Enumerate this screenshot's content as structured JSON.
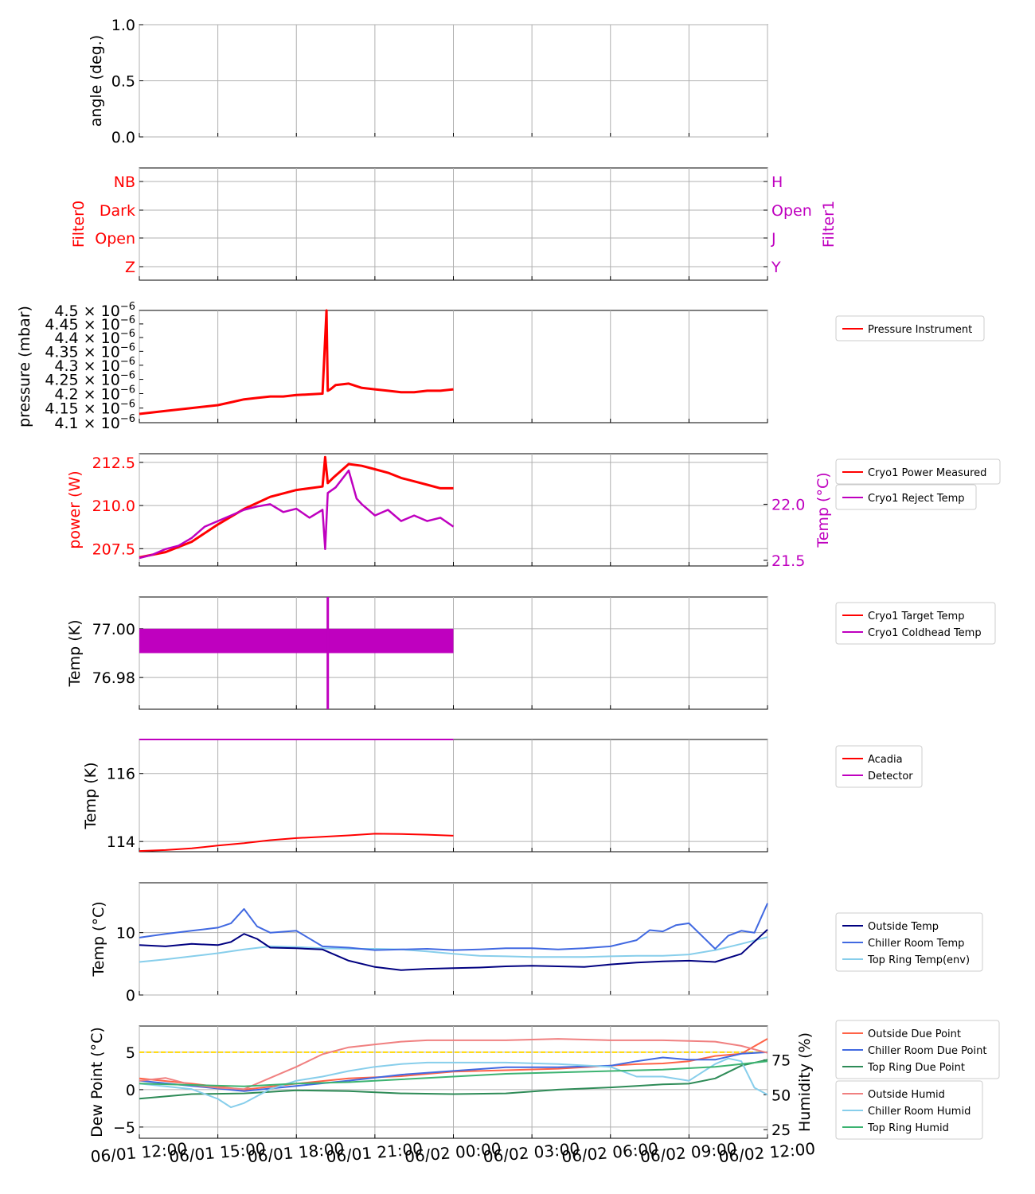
{
  "time_ticks": [
    "06/01 12:00",
    "06/01 15:00",
    "06/01 18:00",
    "06/01 21:00",
    "06/02 00:00",
    "06/02 03:00",
    "06/02 06:00",
    "06/02 09:00",
    "06/02 12:00"
  ],
  "colors": {
    "red": "#ff0000",
    "magenta": "#bf00bf",
    "navy": "#000080",
    "royalblue": "#4169e1",
    "skyblue": "#87ceeb",
    "seagreen": "#2e8b57",
    "tomato": "#ff6347",
    "lightcoral": "#f08080",
    "mediumseagreen": "#3cb371",
    "gold": "#ffd700",
    "grid": "#b0b0b0"
  },
  "chart_data": [
    {
      "type": "line",
      "ylabel": "angle (deg.)",
      "ylim": [
        0,
        1
      ],
      "yticks": [
        "0.0",
        "0.5",
        "1.0"
      ],
      "series": []
    },
    {
      "type": "line",
      "ylabel_left": "Filter0",
      "ylabel_right": "Filter1",
      "yticks_left": [
        "Z",
        "Open",
        "Dark",
        "NB"
      ],
      "yticks_right": [
        "Y",
        "J",
        "Open",
        "H"
      ],
      "series": []
    },
    {
      "type": "line",
      "ylabel": "pressure (mbar)",
      "yscale": "log",
      "ylim": [
        4.1e-06,
        4.5e-06
      ],
      "yticks": [
        {
          "mant": "4.1",
          "exp": "−6"
        },
        {
          "mant": "4.15",
          "exp": "−6"
        },
        {
          "mant": "4.2",
          "exp": "−6"
        },
        {
          "mant": "4.25",
          "exp": "−6"
        },
        {
          "mant": "4.3",
          "exp": "−6"
        },
        {
          "mant": "4.35",
          "exp": "−6"
        },
        {
          "mant": "4.4",
          "exp": "−6"
        },
        {
          "mant": "4.45",
          "exp": "−6"
        },
        {
          "mant": "4.5",
          "exp": "−6"
        }
      ],
      "series": [
        {
          "name": "Pressure Instrument",
          "x": [
            0,
            1,
            2,
            3,
            3.5,
            4,
            4.5,
            5,
            5.5,
            6,
            7,
            7.15,
            7.2,
            7.3,
            7.5,
            8,
            8.5,
            9,
            9.5,
            10,
            10.5,
            11,
            11.5,
            12
          ],
          "y": [
            4.13e-06,
            4.14e-06,
            4.15e-06,
            4.16e-06,
            4.17e-06,
            4.18e-06,
            4.185e-06,
            4.19e-06,
            4.19e-06,
            4.195e-06,
            4.2e-06,
            4.5e-06,
            4.21e-06,
            4.215e-06,
            4.23e-06,
            4.235e-06,
            4.22e-06,
            4.215e-06,
            4.21e-06,
            4.205e-06,
            4.205e-06,
            4.21e-06,
            4.21e-06,
            4.215e-06
          ]
        }
      ]
    },
    {
      "type": "line",
      "ylabel_left": "power (W)",
      "ylabel_right": "Temp (°C)",
      "ylim_left": [
        206.5,
        213.0
      ],
      "ylim_right": [
        21.45,
        22.45
      ],
      "yticks_left": [
        "207.5",
        "210.0",
        "212.5"
      ],
      "yticks_right": [
        "21.5",
        "22.0"
      ],
      "series": [
        {
          "name": "Cryo1 Power Measured",
          "axis": "left",
          "x": [
            0,
            1,
            2,
            3,
            4,
            5,
            6,
            7,
            7.1,
            7.2,
            7.4,
            8,
            8.5,
            9,
            9.5,
            10,
            10.5,
            11,
            11.5,
            12
          ],
          "y": [
            207.0,
            207.3,
            207.9,
            208.9,
            209.8,
            210.5,
            210.9,
            211.1,
            212.8,
            211.3,
            211.6,
            212.4,
            212.3,
            212.1,
            211.9,
            211.6,
            211.4,
            211.2,
            211.0,
            211.0
          ]
        },
        {
          "name": "Cryo1 Reject Temp",
          "axis": "right",
          "x": [
            0,
            0.5,
            1,
            1.5,
            2,
            2.5,
            3,
            3.5,
            4,
            4.5,
            5,
            5.5,
            6,
            6.5,
            7,
            7.1,
            7.2,
            7.5,
            8,
            8.3,
            8.5,
            9,
            9.5,
            10,
            10.5,
            11,
            11.5,
            12
          ],
          "y": [
            21.52,
            21.55,
            21.6,
            21.63,
            21.7,
            21.8,
            21.85,
            21.9,
            21.95,
            21.98,
            22.0,
            21.93,
            21.96,
            21.88,
            21.95,
            21.6,
            22.1,
            22.15,
            22.3,
            22.05,
            22.0,
            21.9,
            21.95,
            21.85,
            21.9,
            21.85,
            21.88,
            21.8
          ]
        }
      ]
    },
    {
      "type": "line",
      "ylabel": "Temp (K)",
      "ylim": [
        76.967,
        77.013
      ],
      "yticks": [
        "76.98",
        "77.00"
      ],
      "series": [
        {
          "name": "Cryo1 Target Temp",
          "x": [
            0,
            12
          ],
          "y": [
            77.0,
            77.0
          ]
        },
        {
          "name": "Cryo1 Coldhead Temp",
          "band": [
            76.99,
            77.0
          ],
          "x": [
            0,
            12
          ],
          "spike": {
            "x": 7.2,
            "y": [
              76.967,
              77.013
            ]
          }
        }
      ]
    },
    {
      "type": "line",
      "ylabel": "Temp (K)",
      "ylim": [
        113.7,
        117.0
      ],
      "yticks": [
        "114",
        "116"
      ],
      "series": [
        {
          "name": "Acadia",
          "x": [
            0,
            1,
            2,
            3,
            4,
            5,
            6,
            7,
            8,
            9,
            10,
            11,
            12
          ],
          "y": [
            113.72,
            113.75,
            113.8,
            113.88,
            113.95,
            114.04,
            114.1,
            114.14,
            114.18,
            114.23,
            114.22,
            114.2,
            114.17
          ]
        },
        {
          "name": "Detector",
          "x": [
            0,
            12
          ],
          "y": [
            117.0,
            117.0
          ]
        }
      ]
    },
    {
      "type": "line",
      "ylabel": "Temp (°C)",
      "ylim": [
        0,
        18
      ],
      "yticks": [
        "0",
        "10"
      ],
      "series": [
        {
          "name": "Outside Temp",
          "x": [
            0,
            1,
            2,
            3,
            3.5,
            4,
            4.5,
            5,
            6,
            7,
            8,
            9,
            10,
            11,
            12,
            13,
            14,
            15,
            16,
            17,
            18,
            19,
            20,
            21,
            22,
            23,
            24
          ],
          "y": [
            8.0,
            7.8,
            8.2,
            8.0,
            8.5,
            9.8,
            9.0,
            7.6,
            7.5,
            7.3,
            5.5,
            4.5,
            4.0,
            4.2,
            4.3,
            4.4,
            4.6,
            4.7,
            4.6,
            4.5,
            4.9,
            5.2,
            5.4,
            5.5,
            5.3,
            6.6,
            10.5
          ]
        },
        {
          "name": "Chiller Room Temp",
          "x": [
            0,
            1,
            2,
            3,
            3.5,
            4,
            4.5,
            5,
            6,
            7,
            8,
            9,
            10,
            11,
            12,
            13,
            14,
            15,
            16,
            17,
            18,
            19,
            19.5,
            20,
            20.5,
            21,
            22,
            22.5,
            23,
            23.5,
            24
          ],
          "y": [
            9.2,
            9.8,
            10.3,
            10.8,
            11.5,
            13.8,
            11.0,
            10.0,
            10.3,
            7.8,
            7.6,
            7.2,
            7.3,
            7.4,
            7.2,
            7.3,
            7.5,
            7.5,
            7.3,
            7.5,
            7.8,
            8.8,
            10.4,
            10.2,
            11.2,
            11.5,
            7.4,
            9.5,
            10.3,
            10.0,
            14.7
          ]
        },
        {
          "name": "Top Ring Temp(env)",
          "x": [
            0,
            1,
            2,
            3,
            4,
            5,
            6,
            7,
            8,
            9,
            10,
            11,
            12,
            13,
            14,
            15,
            16,
            17,
            18,
            19,
            20,
            21,
            22,
            23,
            24
          ],
          "y": [
            5.3,
            5.7,
            6.2,
            6.7,
            7.3,
            7.8,
            7.7,
            7.5,
            7.4,
            7.4,
            7.3,
            7.0,
            6.6,
            6.3,
            6.2,
            6.1,
            6.1,
            6.1,
            6.2,
            6.3,
            6.3,
            6.5,
            7.2,
            8.2,
            9.3
          ]
        }
      ]
    },
    {
      "type": "line",
      "ylabel_left": "Dew Point (°C)",
      "ylabel_right": "Humidity (%)",
      "ylim_left": [
        -6.5,
        8.5
      ],
      "ylim_right": [
        18.8,
        99.2
      ],
      "yticks_left": [
        "−5",
        "0",
        "5"
      ],
      "yticks_right": [
        "25",
        "50",
        "75"
      ],
      "threshold": {
        "y": 5,
        "color": "#ffd700"
      },
      "series": [
        {
          "name": "Outside Due Point",
          "axis": "left",
          "x": [
            0,
            2,
            4,
            6,
            8,
            10,
            12,
            14,
            16,
            18,
            19,
            20,
            21,
            22,
            23,
            24
          ],
          "y": [
            1.5,
            0.8,
            0.0,
            0.8,
            1.5,
            1.8,
            2.4,
            2.6,
            2.8,
            3.2,
            3.4,
            3.5,
            3.8,
            4.5,
            4.8,
            6.8
          ]
        },
        {
          "name": "Chiller Room Due Point",
          "axis": "left",
          "x": [
            0,
            2,
            4,
            6,
            8,
            10,
            12,
            14,
            16,
            18,
            19,
            20,
            21,
            22,
            23,
            24
          ],
          "y": [
            1.2,
            0.5,
            -0.2,
            0.5,
            1.2,
            2.0,
            2.5,
            3.0,
            3.0,
            3.2,
            3.8,
            4.3,
            4.0,
            4.0,
            4.8,
            5.0
          ]
        },
        {
          "name": "Top Ring Due Point",
          "axis": "left",
          "x": [
            0,
            2,
            4,
            6,
            8,
            10,
            12,
            14,
            16,
            18,
            19,
            20,
            21,
            22,
            23,
            24
          ],
          "y": [
            -1.2,
            -0.6,
            -0.5,
            -0.1,
            -0.2,
            -0.5,
            -0.6,
            -0.5,
            0.0,
            0.3,
            0.5,
            0.7,
            0.8,
            1.5,
            3.2,
            4.0
          ]
        },
        {
          "name": "Outside Humid",
          "axis": "right",
          "x": [
            0,
            1,
            2,
            3,
            4,
            5,
            6,
            7,
            8,
            9,
            10,
            11,
            12,
            14,
            16,
            18,
            20,
            22,
            23,
            24
          ],
          "y": [
            60,
            62,
            57,
            55,
            54,
            62,
            70,
            79,
            84,
            86,
            88,
            89,
            89,
            89,
            90,
            89,
            89,
            88,
            85,
            80
          ]
        },
        {
          "name": "Chiller Room Humid",
          "axis": "right",
          "x": [
            0,
            1,
            2,
            3,
            3.5,
            4,
            5,
            6,
            7,
            8,
            9,
            10,
            11,
            12,
            14,
            16,
            18,
            19,
            20,
            21,
            22,
            22.5,
            23,
            23.5,
            24
          ],
          "y": [
            58,
            56,
            54,
            47,
            41,
            44,
            54,
            60,
            63,
            67,
            70,
            72,
            73,
            73,
            73,
            72,
            70,
            63,
            63,
            60,
            72,
            76,
            74,
            55,
            50
          ]
        },
        {
          "name": "Top Ring Humid",
          "axis": "right",
          "x": [
            0,
            2,
            4,
            6,
            8,
            10,
            12,
            14,
            16,
            18,
            20,
            22,
            23,
            24
          ],
          "y": [
            58,
            57,
            56,
            58,
            59,
            61,
            63,
            65,
            66,
            67,
            68,
            70,
            72,
            74
          ]
        }
      ]
    }
  ]
}
